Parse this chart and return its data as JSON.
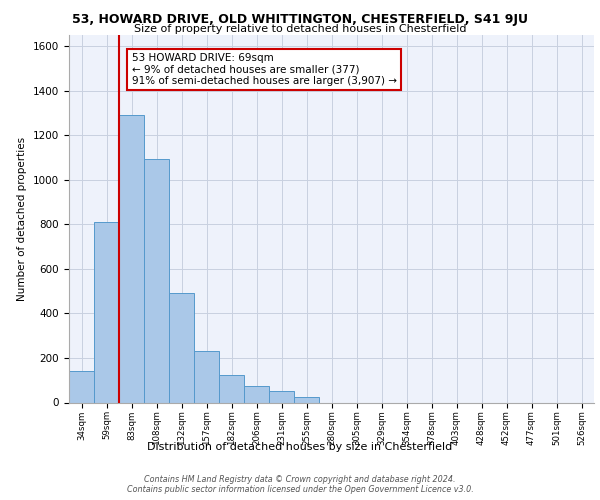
{
  "title_line1": "53, HOWARD DRIVE, OLD WHITTINGTON, CHESTERFIELD, S41 9JU",
  "title_line2": "Size of property relative to detached houses in Chesterfield",
  "xlabel": "Distribution of detached houses by size in Chesterfield",
  "ylabel": "Number of detached properties",
  "bar_labels": [
    "34sqm",
    "59sqm",
    "83sqm",
    "108sqm",
    "132sqm",
    "157sqm",
    "182sqm",
    "206sqm",
    "231sqm",
    "255sqm",
    "280sqm",
    "305sqm",
    "329sqm",
    "354sqm",
    "378sqm",
    "403sqm",
    "428sqm",
    "452sqm",
    "477sqm",
    "501sqm",
    "526sqm"
  ],
  "bar_values": [
    140,
    810,
    1290,
    1095,
    490,
    230,
    125,
    75,
    50,
    25,
    0,
    0,
    0,
    0,
    0,
    0,
    0,
    0,
    0,
    0,
    0
  ],
  "bar_color": "#aac8e8",
  "bar_edge_color": "#5599cc",
  "vline_color": "#cc0000",
  "vline_x_index": 1.5,
  "annotation_text": "53 HOWARD DRIVE: 69sqm\n← 9% of detached houses are smaller (377)\n91% of semi-detached houses are larger (3,907) →",
  "annotation_box_color": "#ffffff",
  "annotation_box_edge": "#cc0000",
  "ylim": [
    0,
    1650
  ],
  "yticks": [
    0,
    200,
    400,
    600,
    800,
    1000,
    1200,
    1400,
    1600
  ],
  "footer_line1": "Contains HM Land Registry data © Crown copyright and database right 2024.",
  "footer_line2": "Contains public sector information licensed under the Open Government Licence v3.0.",
  "plot_bg_color": "#eef2fb",
  "grid_color": "#c8d0e0"
}
